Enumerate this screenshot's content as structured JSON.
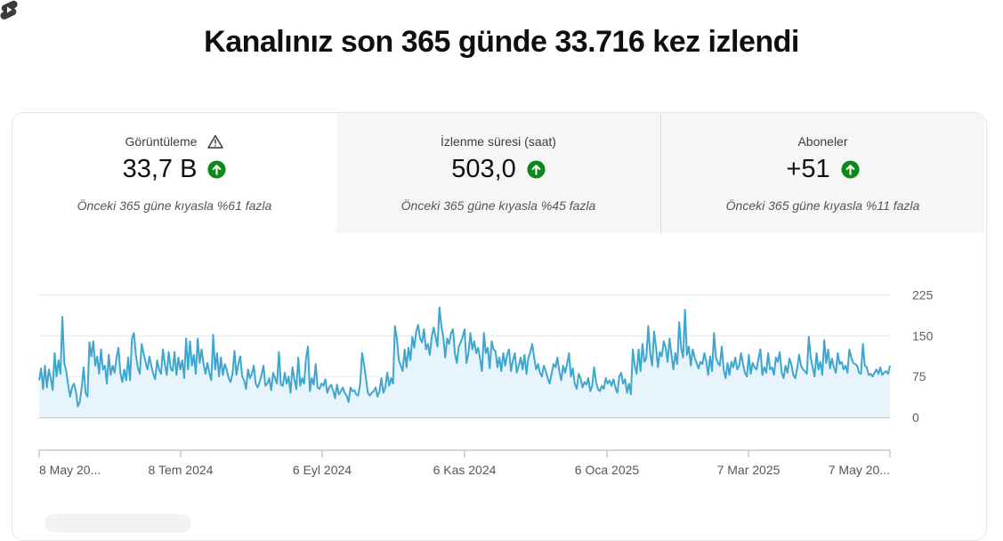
{
  "title": "Kanalınız son 365 günde 33.716 kez izlendi",
  "metrics": [
    {
      "label": "Görüntüleme",
      "value": "33,7 B",
      "note": "Önceki 365 güne kıyasla %61 fazla",
      "warning_icon": "warning-icon",
      "trend_icon": "arrow-up-circle-icon"
    },
    {
      "label": "İzlenme süresi (saat)",
      "value": "503,0",
      "note": "Önceki 365 güne kıyasla %45 fazla",
      "trend_icon": "arrow-up-circle-icon"
    },
    {
      "label": "Aboneler",
      "value": "+51",
      "note": "Önceki 365 güne kıyasla %11 fazla",
      "trend_icon": "arrow-up-circle-icon"
    }
  ],
  "colors": {
    "line": "#3ea6cf",
    "fill": "#e8f4fb",
    "trend_up": "#0b8a1b"
  },
  "chart_data": {
    "type": "area",
    "x_ticks": [
      "8 May 20...",
      "8 Tem 2024",
      "6 Eyl 2024",
      "6 Kas 2024",
      "6 Oca 2025",
      "7 Mar 2025",
      "7 May 20..."
    ],
    "y_ticks": [
      "225",
      "150",
      "75",
      "0"
    ],
    "ylim": [
      0,
      225
    ],
    "annotation_icon": "shorts-icon",
    "series": [
      {
        "values": [
          68,
          90,
          52,
          95,
          55,
          88,
          72,
          50,
          118,
          75,
          105,
          80,
          185,
          100,
          85,
          60,
          38,
          55,
          62,
          48,
          20,
          28,
          55,
          92,
          45,
          38,
          138,
          112,
          140,
          95,
          112,
          80,
          125,
          88,
          95,
          62,
          115,
          78,
          95,
          82,
          110,
          128,
          82,
          65,
          88,
          68,
          110,
          68,
          145,
          155,
          115,
          92,
          80,
          135,
          118,
          102,
          88,
          112,
          95,
          80,
          70,
          105,
          88,
          80,
          125,
          98,
          78,
          120,
          90,
          85,
          120,
          78,
          110,
          88,
          105,
          72,
          145,
          88,
          140,
          95,
          115,
          80,
          145,
          100,
          125,
          98,
          80,
          100,
          82,
          68,
          152,
          88,
          118,
          75,
          110,
          78,
          98,
          88,
          72,
          65,
          80,
          122,
          78,
          98,
          112,
          75,
          68,
          52,
          88,
          72,
          80,
          95,
          62,
          55,
          65,
          78,
          95,
          58,
          62,
          72,
          50,
          82,
          72,
          62,
          120,
          60,
          58,
          82,
          62,
          75,
          45,
          92,
          70,
          52,
          110,
          58,
          72,
          62,
          108,
          130,
          48,
          72,
          60,
          98,
          55,
          52,
          62,
          58,
          70,
          45,
          55,
          60,
          50,
          35,
          60,
          42,
          48,
          55,
          45,
          40,
          28,
          55,
          48,
          50,
          42,
          40,
          62,
          118,
          98,
          72,
          45,
          40,
          45,
          48,
          55,
          38,
          48,
          72,
          45,
          55,
          82,
          58,
          72,
          62,
          168,
          145,
          105,
          95,
          85,
          125,
          92,
          128,
          105,
          148,
          128,
          158,
          170,
          145,
          138,
          162,
          125,
          135,
          115,
          148,
          165,
          148,
          130,
          202,
          168,
          148,
          110,
          145,
          135,
          155,
          162,
          118,
          100,
          130,
          138,
          148,
          162,
          100,
          118,
          155,
          125,
          140,
          118,
          128,
          108,
          85,
          155,
          118,
          128,
          90,
          140,
          125,
          122,
          92,
          110,
          85,
          118,
          95,
          115,
          125,
          85,
          105,
          118,
          82,
          95,
          110,
          88,
          115,
          80,
          110,
          120,
          135,
          110,
          88,
          98,
          82,
          75,
          95,
          85,
          72,
          62,
          80,
          98,
          92,
          110,
          85,
          68,
          95,
          82,
          98,
          118,
          75,
          90,
          62,
          52,
          80,
          72,
          55,
          65,
          60,
          72,
          48,
          58,
          92,
          65,
          52,
          48,
          58,
          52,
          72,
          62,
          68,
          58,
          70,
          55,
          45,
          75,
          82,
          62,
          70,
          45,
          62,
          42,
          125,
          95,
          80,
          125,
          85,
          135,
          102,
          110,
          168,
          118,
          95,
          158,
          130,
          92,
          120,
          112,
          140,
          128,
          102,
          145,
          115,
          88,
          118,
          98,
          175,
          128,
          110,
          198,
          115,
          130,
          95,
          125,
          110,
          100,
          90,
          102,
          98,
          118,
          102,
          78,
          112,
          85,
          155,
          110,
          100,
          95,
          130,
          88,
          72,
          100,
          78,
          102,
          92,
          110,
          88,
          95,
          118,
          98,
          82,
          75,
          115,
          80,
          100,
          92,
          88,
          108,
          125,
          78,
          92,
          82,
          118,
          88,
          92,
          78,
          110,
          102,
          120,
          82,
          72,
          95,
          82,
          108,
          98,
          78,
          72,
          90,
          115,
          95,
          88,
          85,
          80,
          148,
          110,
          92,
          75,
          118,
          88,
          102,
          78,
          142,
          100,
          125,
          90,
          108,
          92,
          82,
          118,
          98,
          102,
          88,
          95,
          82,
          125,
          110,
          100,
          98,
          95,
          82,
          80,
          135,
          95,
          92,
          78,
          80,
          75,
          82,
          88,
          80,
          92,
          78,
          82,
          85,
          80,
          95
        ]
      }
    ]
  }
}
